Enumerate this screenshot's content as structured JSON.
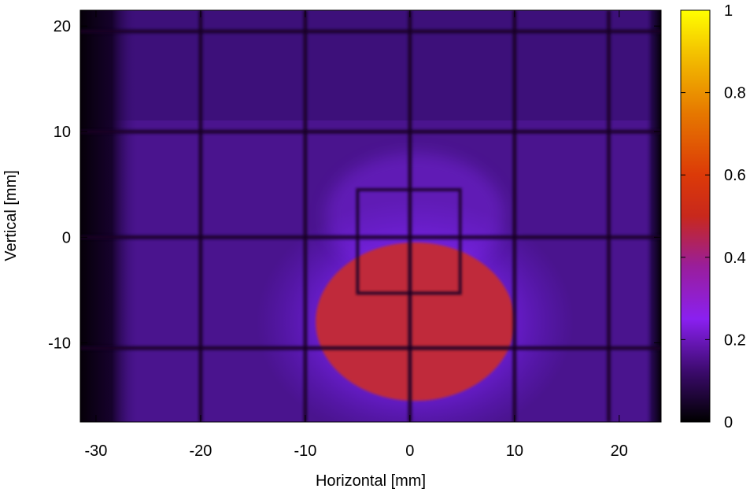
{
  "chart_data": {
    "type": "heatmap",
    "title": "",
    "xlabel": "Horizontal [mm]",
    "ylabel": "Vertical [mm]",
    "xlim": [
      -31.5,
      24
    ],
    "ylim": [
      -17.5,
      21.5
    ],
    "x_ticks": [
      {
        "value": -30,
        "label": "-30"
      },
      {
        "value": -20,
        "label": "-20"
      },
      {
        "value": -10,
        "label": "-10"
      },
      {
        "value": 0,
        "label": "0"
      },
      {
        "value": 10,
        "label": "10"
      },
      {
        "value": 20,
        "label": "20"
      }
    ],
    "y_ticks": [
      {
        "value": 20,
        "label": "20"
      },
      {
        "value": 10,
        "label": "10"
      },
      {
        "value": 0,
        "label": "0"
      },
      {
        "value": -10,
        "label": "-10"
      }
    ],
    "colorbar": {
      "range": [
        0,
        1
      ],
      "colormap": "black-purple-red-orange-yellow",
      "stops": [
        {
          "value": 0.0,
          "color": "#000000"
        },
        {
          "value": 0.12,
          "color": "#3a0a6a"
        },
        {
          "value": 0.25,
          "color": "#8a20f0"
        },
        {
          "value": 0.38,
          "color": "#9a1e9a"
        },
        {
          "value": 0.5,
          "color": "#c8281c"
        },
        {
          "value": 0.6,
          "color": "#dc3a08"
        },
        {
          "value": 0.75,
          "color": "#e67800"
        },
        {
          "value": 0.9,
          "color": "#f4c400"
        },
        {
          "value": 1.0,
          "color": "#ffff00"
        }
      ],
      "ticks": [
        {
          "value": 0,
          "label": "0"
        },
        {
          "value": 0.2,
          "label": "0.2"
        },
        {
          "value": 0.4,
          "label": "0.4"
        },
        {
          "value": 0.6,
          "label": "0.6"
        },
        {
          "value": 0.8,
          "label": "0.8"
        },
        {
          "value": 1,
          "label": "1"
        }
      ]
    },
    "field": {
      "background_level": 0.12,
      "dark_edge_left_x": [
        -31.5,
        -26
      ],
      "dark_edge_right_x": [
        22.5,
        24
      ],
      "beam_spot": {
        "center": [
          0.5,
          -8
        ],
        "width": 19,
        "height": 15,
        "level": 0.5
      },
      "grid_lines_x": [
        -20,
        -10,
        0,
        10,
        19
      ],
      "grid_lines_y": [
        -10.5,
        0,
        10,
        19.5
      ],
      "inner_rectangle": {
        "x": [
          -5,
          4.8
        ],
        "y": [
          -5.3,
          4.5
        ]
      }
    }
  }
}
